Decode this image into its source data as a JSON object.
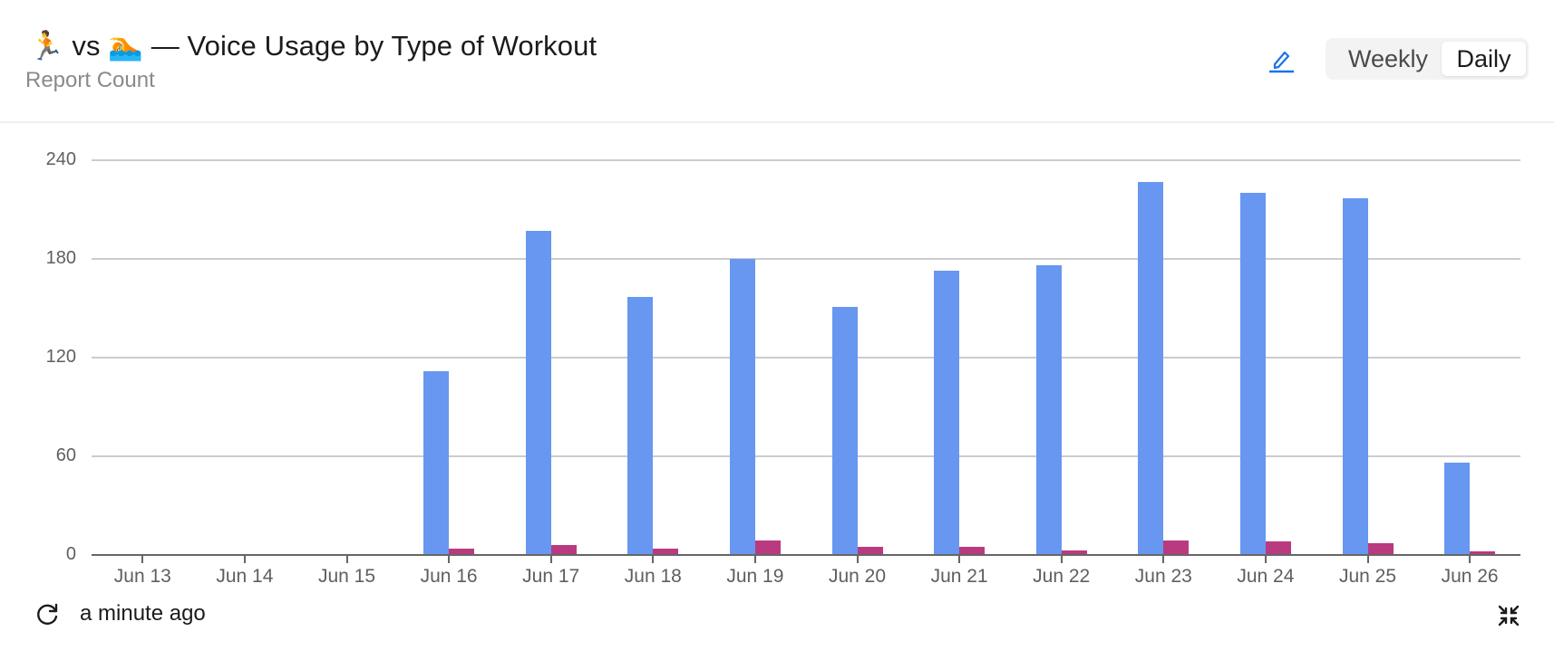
{
  "header": {
    "title": "🏃 vs 🏊 — Voice Usage by Type of Workout",
    "subtitle": "Report Count",
    "edit_icon": "pencil-icon",
    "toggle": {
      "options": [
        "Weekly",
        "Daily"
      ],
      "selected": "Daily"
    }
  },
  "footer": {
    "refresh_icon": "refresh-icon",
    "updated_text": "a minute ago",
    "collapse_icon": "collapse-icon"
  },
  "colors": {
    "series_run": "#6797f0",
    "series_swim": "#b93a7e",
    "gridline": "#cccccc",
    "axis": "#666666",
    "accent": "#1a73e8"
  },
  "chart_data": {
    "type": "bar",
    "title": "🏃 vs 🏊 — Voice Usage by Type of Workout",
    "subtitle": "Report Count",
    "xlabel": "",
    "ylabel": "",
    "categories": [
      "Jun 13",
      "Jun 14",
      "Jun 15",
      "Jun 16",
      "Jun 17",
      "Jun 18",
      "Jun 19",
      "Jun 20",
      "Jun 21",
      "Jun 22",
      "Jun 23",
      "Jun 24",
      "Jun 25",
      "Jun 26"
    ],
    "series": [
      {
        "name": "Running",
        "color": "#6797f0",
        "values": [
          0,
          0,
          0,
          112,
          197,
          157,
          180,
          151,
          173,
          176,
          227,
          220,
          217,
          56
        ]
      },
      {
        "name": "Swimming",
        "color": "#b93a7e",
        "values": [
          0,
          0,
          0,
          4,
          6,
          4,
          9,
          5,
          5,
          3,
          9,
          8,
          7,
          2
        ]
      }
    ],
    "yticks": [
      0,
      60,
      120,
      180,
      240
    ],
    "ylim": [
      0,
      240
    ],
    "grid": true,
    "legend": "none"
  }
}
